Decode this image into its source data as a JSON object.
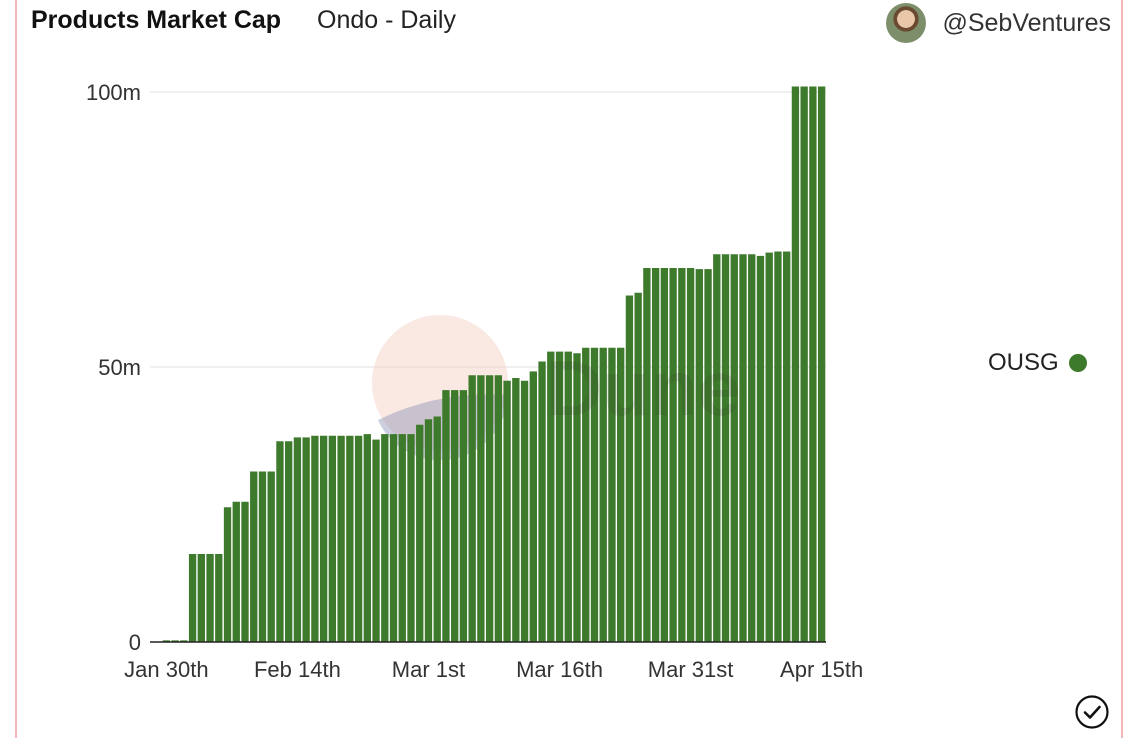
{
  "header": {
    "title": "Products Market Cap",
    "subtitle": "Ondo - Daily",
    "author": "@SebVentures"
  },
  "colors": {
    "bar": "#3e7a2b",
    "grid": "#e8e8e8",
    "axis": "#222222"
  },
  "icons": {
    "avatar": "avatar",
    "check": "check-circle-icon"
  },
  "watermark": "Dune",
  "chart_data": {
    "type": "bar",
    "title": "Products Market Cap",
    "subtitle": "Ondo - Daily",
    "xlabel": "",
    "ylabel": "",
    "ylim": [
      0,
      100
    ],
    "y_unit": "m",
    "yticks": [
      {
        "value": 0,
        "label": "0"
      },
      {
        "value": 50,
        "label": "50m"
      },
      {
        "value": 100,
        "label": "100m"
      }
    ],
    "xticks": [
      {
        "index": 0,
        "label": "Jan 30th"
      },
      {
        "index": 15,
        "label": "Feb 14th"
      },
      {
        "index": 30,
        "label": "Mar 1st"
      },
      {
        "index": 45,
        "label": "Mar 16th"
      },
      {
        "index": 60,
        "label": "Mar 31st"
      },
      {
        "index": 75,
        "label": "Apr 15th"
      }
    ],
    "grid": true,
    "legend_position": "right",
    "series": [
      {
        "name": "OUSG",
        "values": [
          0.3,
          0.3,
          0.3,
          16,
          16,
          16,
          16,
          24.5,
          25.5,
          25.5,
          31,
          31,
          31,
          36.5,
          36.5,
          37.2,
          37.2,
          37.5,
          37.5,
          37.5,
          37.5,
          37.5,
          37.5,
          37.8,
          36.8,
          37.8,
          37.8,
          37.8,
          37.8,
          39.5,
          40.5,
          41,
          45.8,
          45.8,
          45.8,
          48.5,
          48.5,
          48.5,
          48.5,
          47.5,
          48,
          47.5,
          49.2,
          51,
          52.8,
          52.8,
          52.8,
          52.5,
          53.5,
          53.5,
          53.5,
          53.5,
          53.5,
          63,
          63.5,
          68,
          68,
          68,
          68,
          68,
          68,
          67.8,
          67.8,
          70.5,
          70.5,
          70.5,
          70.5,
          70.5,
          70.2,
          70.8,
          71,
          71,
          101,
          101,
          101,
          101
        ]
      }
    ]
  }
}
